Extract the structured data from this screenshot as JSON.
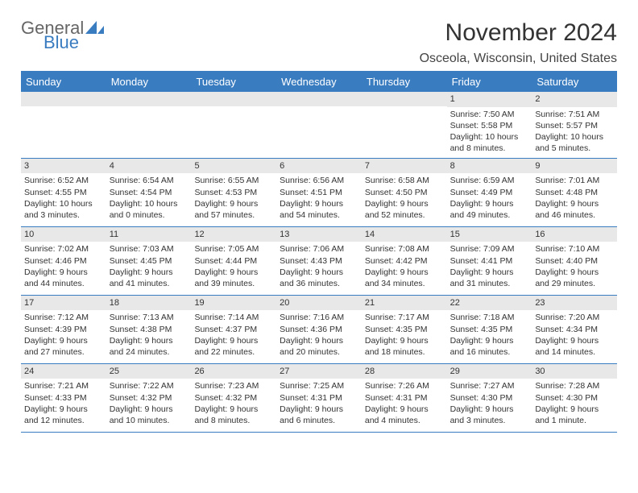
{
  "logo": {
    "text1": "General",
    "text2": "Blue"
  },
  "title": "November 2024",
  "location": "Osceola, Wisconsin, United States",
  "colors": {
    "accent": "#3a7cc0",
    "header_bg": "#3a7cc0",
    "header_text": "#ffffff",
    "daynum_bg": "#e8e8e8",
    "text": "#333333",
    "background": "#ffffff"
  },
  "day_labels": [
    "Sunday",
    "Monday",
    "Tuesday",
    "Wednesday",
    "Thursday",
    "Friday",
    "Saturday"
  ],
  "weeks": [
    [
      {
        "n": "",
        "sunrise": "",
        "sunset": "",
        "daylight": ""
      },
      {
        "n": "",
        "sunrise": "",
        "sunset": "",
        "daylight": ""
      },
      {
        "n": "",
        "sunrise": "",
        "sunset": "",
        "daylight": ""
      },
      {
        "n": "",
        "sunrise": "",
        "sunset": "",
        "daylight": ""
      },
      {
        "n": "",
        "sunrise": "",
        "sunset": "",
        "daylight": ""
      },
      {
        "n": "1",
        "sunrise": "Sunrise: 7:50 AM",
        "sunset": "Sunset: 5:58 PM",
        "daylight": "Daylight: 10 hours and 8 minutes."
      },
      {
        "n": "2",
        "sunrise": "Sunrise: 7:51 AM",
        "sunset": "Sunset: 5:57 PM",
        "daylight": "Daylight: 10 hours and 5 minutes."
      }
    ],
    [
      {
        "n": "3",
        "sunrise": "Sunrise: 6:52 AM",
        "sunset": "Sunset: 4:55 PM",
        "daylight": "Daylight: 10 hours and 3 minutes."
      },
      {
        "n": "4",
        "sunrise": "Sunrise: 6:54 AM",
        "sunset": "Sunset: 4:54 PM",
        "daylight": "Daylight: 10 hours and 0 minutes."
      },
      {
        "n": "5",
        "sunrise": "Sunrise: 6:55 AM",
        "sunset": "Sunset: 4:53 PM",
        "daylight": "Daylight: 9 hours and 57 minutes."
      },
      {
        "n": "6",
        "sunrise": "Sunrise: 6:56 AM",
        "sunset": "Sunset: 4:51 PM",
        "daylight": "Daylight: 9 hours and 54 minutes."
      },
      {
        "n": "7",
        "sunrise": "Sunrise: 6:58 AM",
        "sunset": "Sunset: 4:50 PM",
        "daylight": "Daylight: 9 hours and 52 minutes."
      },
      {
        "n": "8",
        "sunrise": "Sunrise: 6:59 AM",
        "sunset": "Sunset: 4:49 PM",
        "daylight": "Daylight: 9 hours and 49 minutes."
      },
      {
        "n": "9",
        "sunrise": "Sunrise: 7:01 AM",
        "sunset": "Sunset: 4:48 PM",
        "daylight": "Daylight: 9 hours and 46 minutes."
      }
    ],
    [
      {
        "n": "10",
        "sunrise": "Sunrise: 7:02 AM",
        "sunset": "Sunset: 4:46 PM",
        "daylight": "Daylight: 9 hours and 44 minutes."
      },
      {
        "n": "11",
        "sunrise": "Sunrise: 7:03 AM",
        "sunset": "Sunset: 4:45 PM",
        "daylight": "Daylight: 9 hours and 41 minutes."
      },
      {
        "n": "12",
        "sunrise": "Sunrise: 7:05 AM",
        "sunset": "Sunset: 4:44 PM",
        "daylight": "Daylight: 9 hours and 39 minutes."
      },
      {
        "n": "13",
        "sunrise": "Sunrise: 7:06 AM",
        "sunset": "Sunset: 4:43 PM",
        "daylight": "Daylight: 9 hours and 36 minutes."
      },
      {
        "n": "14",
        "sunrise": "Sunrise: 7:08 AM",
        "sunset": "Sunset: 4:42 PM",
        "daylight": "Daylight: 9 hours and 34 minutes."
      },
      {
        "n": "15",
        "sunrise": "Sunrise: 7:09 AM",
        "sunset": "Sunset: 4:41 PM",
        "daylight": "Daylight: 9 hours and 31 minutes."
      },
      {
        "n": "16",
        "sunrise": "Sunrise: 7:10 AM",
        "sunset": "Sunset: 4:40 PM",
        "daylight": "Daylight: 9 hours and 29 minutes."
      }
    ],
    [
      {
        "n": "17",
        "sunrise": "Sunrise: 7:12 AM",
        "sunset": "Sunset: 4:39 PM",
        "daylight": "Daylight: 9 hours and 27 minutes."
      },
      {
        "n": "18",
        "sunrise": "Sunrise: 7:13 AM",
        "sunset": "Sunset: 4:38 PM",
        "daylight": "Daylight: 9 hours and 24 minutes."
      },
      {
        "n": "19",
        "sunrise": "Sunrise: 7:14 AM",
        "sunset": "Sunset: 4:37 PM",
        "daylight": "Daylight: 9 hours and 22 minutes."
      },
      {
        "n": "20",
        "sunrise": "Sunrise: 7:16 AM",
        "sunset": "Sunset: 4:36 PM",
        "daylight": "Daylight: 9 hours and 20 minutes."
      },
      {
        "n": "21",
        "sunrise": "Sunrise: 7:17 AM",
        "sunset": "Sunset: 4:35 PM",
        "daylight": "Daylight: 9 hours and 18 minutes."
      },
      {
        "n": "22",
        "sunrise": "Sunrise: 7:18 AM",
        "sunset": "Sunset: 4:35 PM",
        "daylight": "Daylight: 9 hours and 16 minutes."
      },
      {
        "n": "23",
        "sunrise": "Sunrise: 7:20 AM",
        "sunset": "Sunset: 4:34 PM",
        "daylight": "Daylight: 9 hours and 14 minutes."
      }
    ],
    [
      {
        "n": "24",
        "sunrise": "Sunrise: 7:21 AM",
        "sunset": "Sunset: 4:33 PM",
        "daylight": "Daylight: 9 hours and 12 minutes."
      },
      {
        "n": "25",
        "sunrise": "Sunrise: 7:22 AM",
        "sunset": "Sunset: 4:32 PM",
        "daylight": "Daylight: 9 hours and 10 minutes."
      },
      {
        "n": "26",
        "sunrise": "Sunrise: 7:23 AM",
        "sunset": "Sunset: 4:32 PM",
        "daylight": "Daylight: 9 hours and 8 minutes."
      },
      {
        "n": "27",
        "sunrise": "Sunrise: 7:25 AM",
        "sunset": "Sunset: 4:31 PM",
        "daylight": "Daylight: 9 hours and 6 minutes."
      },
      {
        "n": "28",
        "sunrise": "Sunrise: 7:26 AM",
        "sunset": "Sunset: 4:31 PM",
        "daylight": "Daylight: 9 hours and 4 minutes."
      },
      {
        "n": "29",
        "sunrise": "Sunrise: 7:27 AM",
        "sunset": "Sunset: 4:30 PM",
        "daylight": "Daylight: 9 hours and 3 minutes."
      },
      {
        "n": "30",
        "sunrise": "Sunrise: 7:28 AM",
        "sunset": "Sunset: 4:30 PM",
        "daylight": "Daylight: 9 hours and 1 minute."
      }
    ]
  ]
}
